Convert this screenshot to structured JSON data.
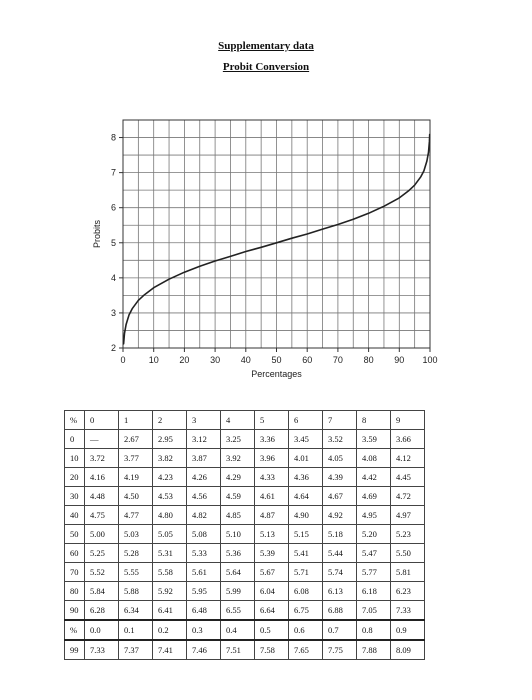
{
  "header": {
    "title": "Supplementary data",
    "subtitle": "Probit Conversion"
  },
  "chart_data": {
    "type": "line",
    "xlabel": "Percentages",
    "ylabel": "Probits",
    "xlim": [
      0,
      100
    ],
    "ylim": [
      2,
      8.5
    ],
    "x_ticks": [
      "0",
      "10",
      "20",
      "30",
      "40",
      "50",
      "60",
      "70",
      "80",
      "90",
      "100"
    ],
    "y_ticks": [
      "2",
      "3",
      "4",
      "5",
      "6",
      "7",
      "8"
    ],
    "grid": true,
    "series": [
      {
        "x": [
          0.2,
          0.5,
          1,
          2,
          3,
          5,
          7,
          10,
          15,
          20,
          25,
          30,
          35,
          40,
          45,
          50,
          55,
          60,
          65,
          70,
          75,
          80,
          85,
          90,
          93,
          95,
          97,
          98,
          99,
          99.5,
          99.8,
          99.9
        ],
        "y": [
          2.12,
          2.42,
          2.67,
          2.95,
          3.12,
          3.36,
          3.52,
          3.72,
          3.96,
          4.16,
          4.33,
          4.48,
          4.61,
          4.75,
          4.87,
          5.0,
          5.13,
          5.25,
          5.39,
          5.52,
          5.67,
          5.84,
          6.04,
          6.28,
          6.48,
          6.64,
          6.88,
          7.05,
          7.33,
          7.58,
          7.88,
          8.09
        ]
      }
    ]
  },
  "table": {
    "header": [
      "%",
      "0",
      "1",
      "2",
      "3",
      "4",
      "5",
      "6",
      "7",
      "8",
      "9"
    ],
    "rows": [
      [
        "0",
        "—",
        "2.67",
        "2.95",
        "3.12",
        "3.25",
        "3.36",
        "3.45",
        "3.52",
        "3.59",
        "3.66"
      ],
      [
        "10",
        "3.72",
        "3.77",
        "3.82",
        "3.87",
        "3.92",
        "3.96",
        "4.01",
        "4.05",
        "4.08",
        "4.12"
      ],
      [
        "20",
        "4.16",
        "4.19",
        "4.23",
        "4.26",
        "4.29",
        "4.33",
        "4.36",
        "4.39",
        "4.42",
        "4.45"
      ],
      [
        "30",
        "4.48",
        "4.50",
        "4.53",
        "4.56",
        "4.59",
        "4.61",
        "4.64",
        "4.67",
        "4.69",
        "4.72"
      ],
      [
        "40",
        "4.75",
        "4.77",
        "4.80",
        "4.82",
        "4.85",
        "4.87",
        "4.90",
        "4.92",
        "4.95",
        "4.97"
      ],
      [
        "50",
        "5.00",
        "5.03",
        "5.05",
        "5.08",
        "5.10",
        "5.13",
        "5.15",
        "5.18",
        "5.20",
        "5.23"
      ],
      [
        "60",
        "5.25",
        "5.28",
        "5.31",
        "5.33",
        "5.36",
        "5.39",
        "5.41",
        "5.44",
        "5.47",
        "5.50"
      ],
      [
        "70",
        "5.52",
        "5.55",
        "5.58",
        "5.61",
        "5.64",
        "5.67",
        "5.71",
        "5.74",
        "5.77",
        "5.81"
      ],
      [
        "80",
        "5.84",
        "5.88",
        "5.92",
        "5.95",
        "5.99",
        "6.04",
        "6.08",
        "6.13",
        "6.18",
        "6.23"
      ],
      [
        "90",
        "6.28",
        "6.34",
        "6.41",
        "6.48",
        "6.55",
        "6.64",
        "6.75",
        "6.88",
        "7.05",
        "7.33"
      ]
    ],
    "subheader": [
      "%",
      "0.0",
      "0.1",
      "0.2",
      "0.3",
      "0.4",
      "0.5",
      "0.6",
      "0.7",
      "0.8",
      "0.9"
    ],
    "subrows": [
      [
        "99",
        "7.33",
        "7.37",
        "7.41",
        "7.46",
        "7.51",
        "7.58",
        "7.65",
        "7.75",
        "7.88",
        "8.09"
      ]
    ]
  }
}
